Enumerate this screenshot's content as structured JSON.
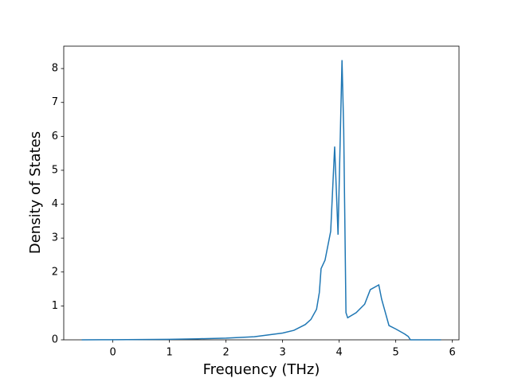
{
  "chart_data": {
    "type": "line",
    "x_label": "Frequency (THz)",
    "y_label": "Density of States",
    "x": [
      -0.55,
      0,
      0.5,
      1,
      1.5,
      2,
      2.5,
      3,
      3.2,
      3.4,
      3.5,
      3.6,
      3.65,
      3.68,
      3.75,
      3.85,
      3.92,
      3.98,
      4.05,
      4.08,
      4.12,
      4.15,
      4.3,
      4.45,
      4.55,
      4.7,
      4.75,
      4.88,
      5.0,
      5.15,
      5.22,
      5.26,
      5.8
    ],
    "series": [
      {
        "color": "#1f77b4",
        "values": [
          0,
          0.003,
          0.008,
          0.015,
          0.03,
          0.05,
          0.09,
          0.2,
          0.28,
          0.45,
          0.6,
          0.9,
          1.4,
          2.1,
          2.35,
          3.2,
          5.7,
          3.1,
          8.25,
          6.2,
          0.8,
          0.65,
          0.8,
          1.05,
          1.48,
          1.62,
          1.2,
          0.42,
          0.32,
          0.18,
          0.1,
          0,
          0
        ]
      }
    ],
    "xlim": [
      -0.8675,
      6.1175
    ],
    "ylim": [
      0,
      8.66
    ],
    "xticks": [
      0,
      1,
      2,
      3,
      4,
      5,
      6
    ],
    "yticks": [
      0,
      1,
      2,
      3,
      4,
      5,
      6,
      7,
      8
    ]
  }
}
